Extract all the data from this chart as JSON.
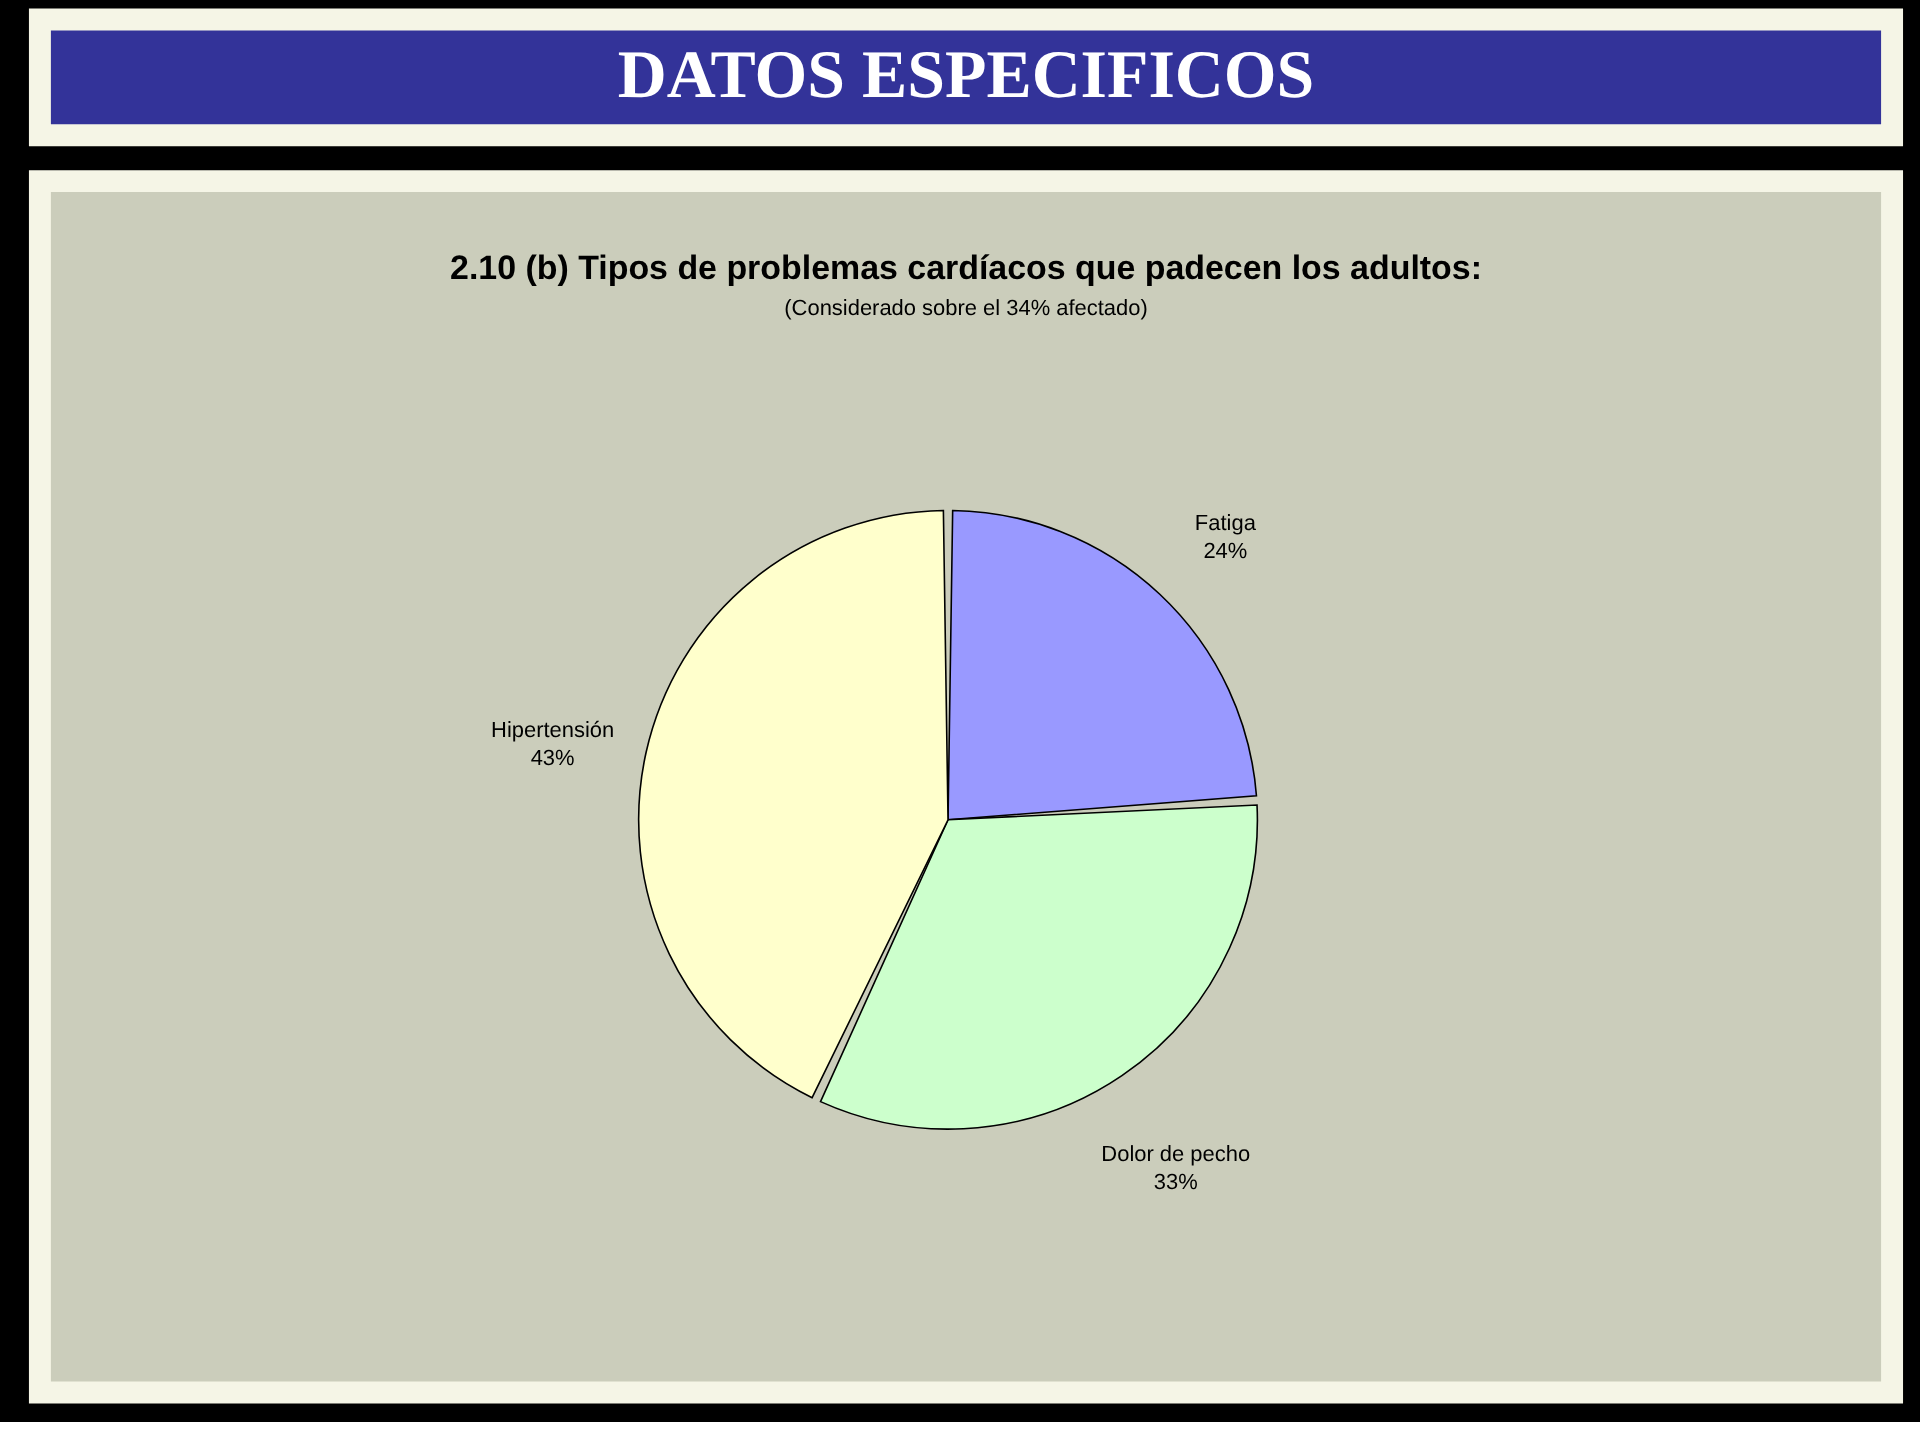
{
  "chart_data": {
    "type": "pie",
    "title": "2.10 (b) Tipos de problemas cardíacos que padecen los adultos:",
    "subtitle": "(Considerado sobre el 34% afectado)",
    "annotations": [
      "DATOS ESPECIFICOS"
    ],
    "categories": [
      "Fatiga",
      "Dolor de pecho",
      "Hipertensión"
    ],
    "values": [
      24,
      33,
      43
    ],
    "value_labels": [
      "24%",
      "33%",
      "43%"
    ],
    "colors": [
      "#9999ff",
      "#ccffcc",
      "#ffffcc"
    ]
  }
}
